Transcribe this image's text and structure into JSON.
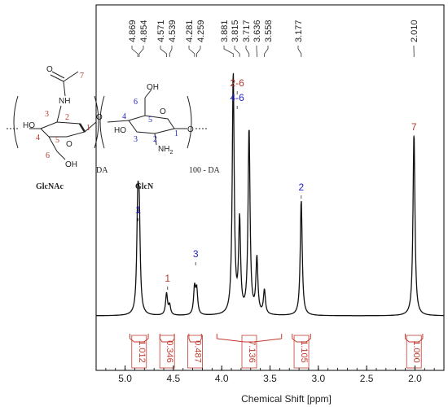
{
  "chart_data": {
    "type": "line",
    "title": "",
    "xlabel": "Chemical Shift [ppm]",
    "ylabel": "",
    "xlim": [
      5.3,
      1.7
    ],
    "x_reversed": true,
    "x_ticks": [
      5.0,
      4.5,
      4.0,
      3.5,
      3.0,
      2.5,
      2.0
    ],
    "x_tick_labels": [
      "5.0",
      "4.5",
      "4.0",
      "3.5",
      "3.0",
      "2.5",
      "2.0"
    ],
    "peak_labels": [
      "4.869",
      "4.854",
      "4.571",
      "4.539",
      "4.281",
      "4.259",
      "3.881",
      "3.815",
      "3.717",
      "3.636",
      "3.558",
      "3.177",
      "2.010"
    ],
    "peak_positions": [
      4.869,
      4.854,
      4.571,
      4.539,
      4.281,
      4.259,
      3.881,
      3.815,
      3.717,
      3.636,
      3.558,
      3.177,
      2.01
    ],
    "peaks": [
      {
        "x": 4.869,
        "height": 0.4
      },
      {
        "x": 4.854,
        "height": 0.36
      },
      {
        "x": 4.571,
        "height": 0.09
      },
      {
        "x": 4.539,
        "height": 0.04
      },
      {
        "x": 4.281,
        "height": 0.11
      },
      {
        "x": 4.259,
        "height": 0.1
      },
      {
        "x": 3.881,
        "height": 1.0
      },
      {
        "x": 3.815,
        "height": 0.38
      },
      {
        "x": 3.717,
        "height": 0.77
      },
      {
        "x": 3.636,
        "height": 0.23
      },
      {
        "x": 3.558,
        "height": 0.1
      },
      {
        "x": 3.177,
        "height": 0.48
      },
      {
        "x": 2.01,
        "height": 0.76
      }
    ],
    "integrals": [
      {
        "from": 4.95,
        "to": 4.76,
        "value": "1.012"
      },
      {
        "from": 4.64,
        "to": 4.49,
        "value": "0.346"
      },
      {
        "from": 4.34,
        "to": 4.21,
        "value": "0.487"
      },
      {
        "from": 4.05,
        "to": 3.38,
        "value": "7.136"
      },
      {
        "from": 3.27,
        "to": 3.08,
        "value": "1.105"
      },
      {
        "from": 2.1,
        "to": 1.92,
        "value": "1.000"
      }
    ],
    "assignments": [
      {
        "x": 4.865,
        "label": "1",
        "color": "#1f1fbf"
      },
      {
        "x": 4.56,
        "label": "1",
        "color": "#b23a2e"
      },
      {
        "x": 4.27,
        "label": "3",
        "color": "#1f1fbf"
      },
      {
        "x": 3.84,
        "label": "2-6",
        "color": "#b23a2e"
      },
      {
        "x": 3.84,
        "label": "4-6",
        "color": "#1f1fbf"
      },
      {
        "x": 3.177,
        "label": "2",
        "color": "#1f1fbf"
      },
      {
        "x": 2.01,
        "label": "7",
        "color": "#b23a2e"
      }
    ],
    "grid": false
  },
  "structure": {
    "unit1_name": "GlcNAc",
    "unit2_name": "GlcN",
    "subscript1": "DA",
    "subscript2": "100 - DA",
    "atoms": {
      "ho": "HO",
      "o": "O",
      "nh": "NH",
      "oh": "OH",
      "nh2": "NH",
      "nh2_sub": "2"
    },
    "numbers_glcnac": [
      "7",
      "3",
      "2",
      "1",
      "4",
      "5",
      "6"
    ],
    "numbers_glcn": [
      "6",
      "4",
      "5",
      "3",
      "2",
      "1"
    ]
  },
  "colors": {
    "glcnac": "#b23a2e",
    "glcn": "#1f1fbf",
    "integral": "#c23b30",
    "trace": "#111111"
  }
}
